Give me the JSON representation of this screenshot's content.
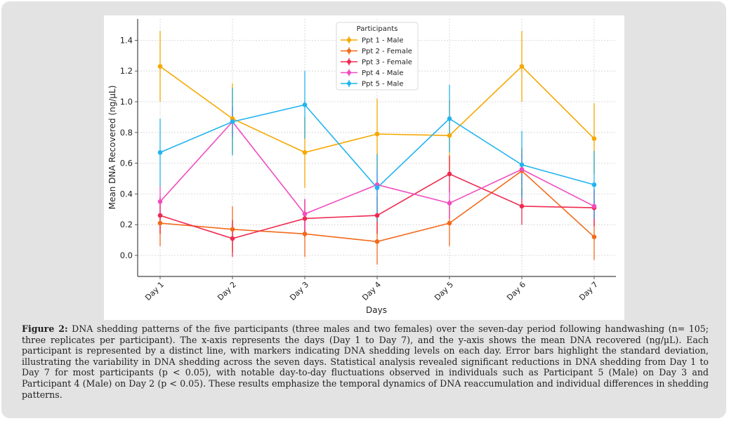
{
  "chart_data": {
    "type": "line",
    "title": "",
    "xlabel": "Days",
    "ylabel": "Mean DNA Recovered (ng/µL)",
    "categories": [
      "Day 1",
      "Day 2",
      "Day 3",
      "Day 4",
      "Day 5",
      "Day 6",
      "Day 7"
    ],
    "ylim": [
      -0.15,
      1.53
    ],
    "yticks": [
      0.0,
      0.2,
      0.4,
      0.6,
      0.8,
      1.0,
      1.2,
      1.4
    ],
    "ytick_labels": [
      "0.0",
      "0.2",
      "0.4",
      "0.6",
      "0.8",
      "1.0",
      "1.2",
      "1.4"
    ],
    "grid": true,
    "legend": {
      "title": "Participants",
      "placement": "top-center"
    },
    "series": [
      {
        "name": "Ppt 1 - Male",
        "color": "#f5a800",
        "values": [
          1.23,
          0.89,
          0.67,
          0.79,
          0.78,
          1.23,
          0.76
        ],
        "errors": [
          0.23,
          0.23,
          0.23,
          0.23,
          0.23,
          0.23,
          0.23
        ]
      },
      {
        "name": "Ppt 2 - Female",
        "color": "#f26a1b",
        "values": [
          0.21,
          0.17,
          0.14,
          0.09,
          0.21,
          0.55,
          0.12
        ],
        "errors": [
          0.15,
          0.15,
          0.15,
          0.15,
          0.15,
          0.15,
          0.15
        ]
      },
      {
        "name": "Ppt 3 - Female",
        "color": "#ee2a50",
        "values": [
          0.26,
          0.11,
          0.24,
          0.26,
          0.53,
          0.32,
          0.31
        ],
        "errors": [
          0.12,
          0.12,
          0.12,
          0.12,
          0.12,
          0.12,
          0.12
        ]
      },
      {
        "name": "Ppt 4 - Male",
        "color": "#f04cc0",
        "values": [
          0.35,
          0.87,
          0.27,
          0.46,
          0.34,
          0.56,
          0.32
        ],
        "errors": [
          0.1,
          0.1,
          0.1,
          0.1,
          0.1,
          0.1,
          0.1
        ]
      },
      {
        "name": "Ppt 5 - Male",
        "color": "#22b4f0",
        "values": [
          0.67,
          0.87,
          0.98,
          0.44,
          0.89,
          0.59,
          0.46
        ],
        "errors": [
          0.22,
          0.22,
          0.22,
          0.22,
          0.22,
          0.22,
          0.22
        ]
      }
    ]
  },
  "caption": {
    "label": "Figure 2:",
    "text": " DNA shedding patterns of the five participants (three males and two females) over the seven-day period following handwashing (n= 105; three replicates per participant). The x-axis represents the days (Day 1 to Day 7), and the y-axis shows the mean DNA recovered (ng/µL). Each participant is represented by a distinct line, with markers indicating DNA shedding levels on each day. Error bars highlight the standard deviation, illustrating the variability in DNA shedding across the seven days. Statistical analysis revealed significant reductions in DNA shedding from Day 1 to Day 7 for most participants (p < 0.05), with notable day-to-day fluctuations observed in individuals such as Participant 5 (Male) on Day 3 and Participant 4 (Male) on Day 2 (p < 0.05). These results emphasize the temporal dynamics of DNA reaccumulation and individual differences in shedding patterns."
  }
}
